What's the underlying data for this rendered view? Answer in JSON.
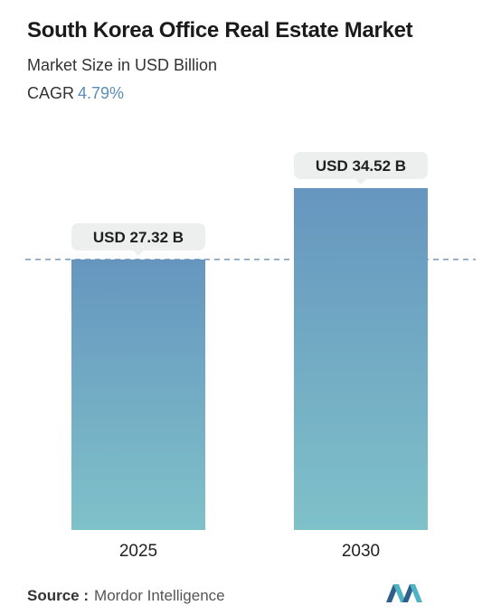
{
  "title": "South Korea Office Real Estate Market",
  "subtitle": "Market Size in USD Billion",
  "cagr": {
    "label": "CAGR",
    "value": "4.79%"
  },
  "source": {
    "label": "Source :",
    "value": "Mordor Intelligence"
  },
  "logo_icon": "mordor-intelligence-logo",
  "colors": {
    "bar_top": "#6696bf",
    "bar_bottom": "#7fc1c9",
    "dashed_line": "#5b84a8",
    "label_bg": "#edeeee",
    "accent": "#5b8db8"
  },
  "chart_data": {
    "type": "bar",
    "categories": [
      "2025",
      "2030"
    ],
    "values": [
      27.32,
      34.52
    ],
    "data_labels": [
      "USD 27.32 B",
      "USD 34.52 B"
    ],
    "reference_line": 27.32,
    "ylim": [
      0,
      34.52
    ],
    "grid": false,
    "legend": "none"
  }
}
